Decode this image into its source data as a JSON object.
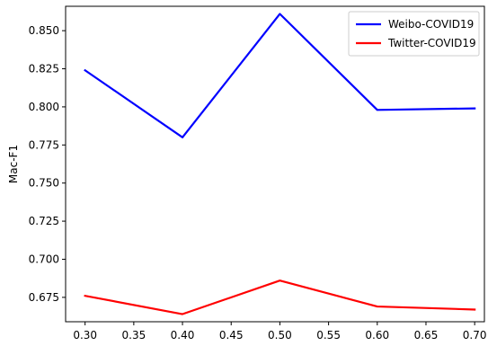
{
  "chart_data": {
    "type": "line",
    "title": "",
    "xlabel": "",
    "ylabel": "Mac-F1",
    "x": [
      0.3,
      0.4,
      0.5,
      0.6,
      0.7
    ],
    "xlim": [
      0.28,
      0.71
    ],
    "ylim": [
      0.659,
      0.866
    ],
    "xticks": [
      "0.30",
      "0.35",
      "0.40",
      "0.45",
      "0.50",
      "0.55",
      "0.60",
      "0.65",
      "0.70"
    ],
    "yticks": [
      "0.675",
      "0.700",
      "0.725",
      "0.750",
      "0.775",
      "0.800",
      "0.825",
      "0.850"
    ],
    "grid": false,
    "legend_position": "top-right",
    "series": [
      {
        "name": "Weibo-COVID19",
        "color": "#0000ff",
        "values": [
          0.824,
          0.78,
          0.861,
          0.798,
          0.799
        ]
      },
      {
        "name": "Twitter-COVID19",
        "color": "#ff0000",
        "values": [
          0.676,
          0.664,
          0.686,
          0.669,
          0.667
        ]
      }
    ]
  }
}
